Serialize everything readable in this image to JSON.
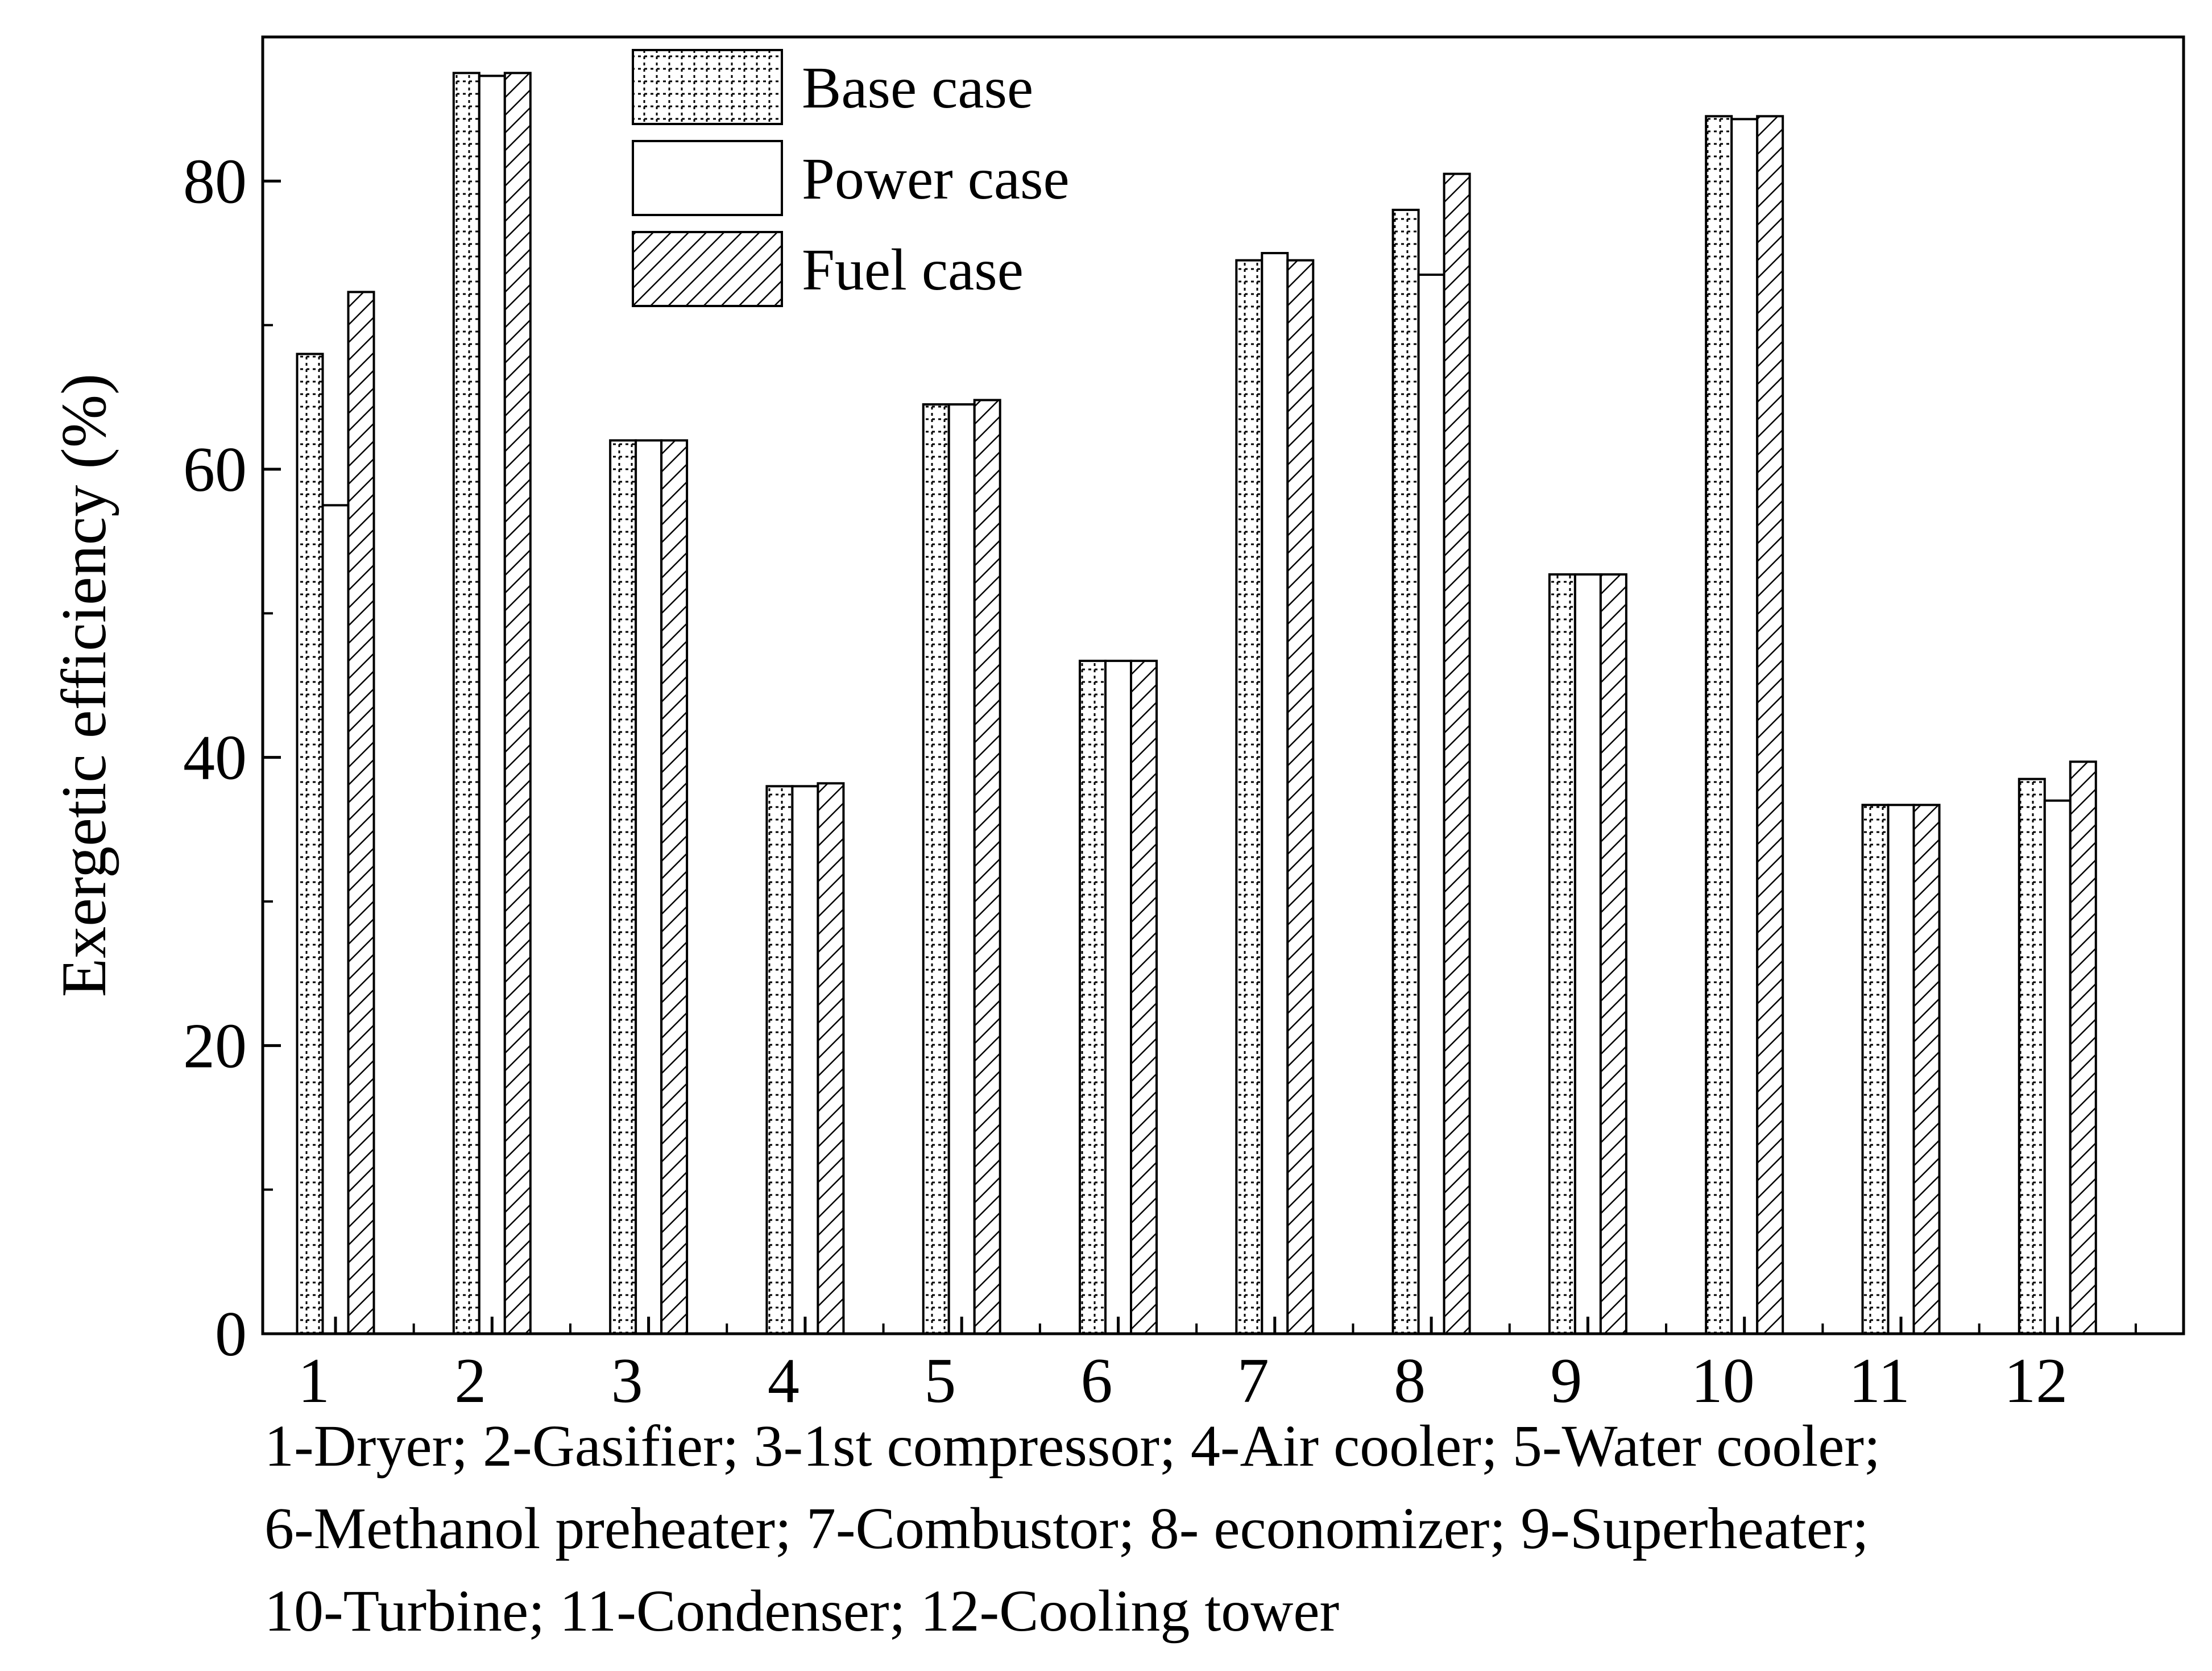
{
  "chart_data": {
    "type": "bar",
    "title": "",
    "xlabel": "",
    "ylabel": "Exergetic efficiency (%)",
    "ylim": [
      0,
      90
    ],
    "yticks": [
      0,
      20,
      40,
      60,
      80
    ],
    "categories": [
      "1",
      "2",
      "3",
      "4",
      "5",
      "6",
      "7",
      "8",
      "9",
      "10",
      "11",
      "12"
    ],
    "series": [
      {
        "name": "Base case",
        "pattern": "dotted-grid",
        "values": [
          68,
          87.5,
          62,
          38,
          64.5,
          46.7,
          74.5,
          78,
          52.7,
          84.5,
          36.7,
          38.5
        ]
      },
      {
        "name": "Power case",
        "pattern": "empty",
        "values": [
          57.5,
          87.3,
          62,
          38,
          64.5,
          46.7,
          75,
          73.5,
          52.7,
          84.3,
          36.7,
          37
        ]
      },
      {
        "name": "Fuel case",
        "pattern": "diagonal-hatch",
        "values": [
          72.3,
          87.5,
          62,
          38.2,
          64.8,
          46.7,
          74.5,
          80.5,
          52.7,
          84.5,
          36.7,
          39.7
        ]
      }
    ],
    "legend_position": "top-left",
    "grid": false
  },
  "caption": {
    "lines": [
      "1-Dryer; 2-Gasifier; 3-1st compressor; 4-Air cooler; 5-Water cooler;",
      "6-Methanol preheater; 7-Combustor; 8- economizer; 9-Superheater;",
      "10-Turbine; 11-Condenser; 12-Cooling tower"
    ]
  }
}
